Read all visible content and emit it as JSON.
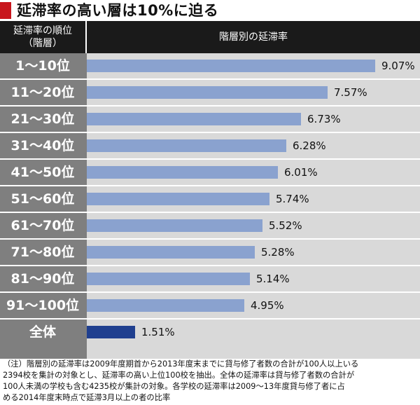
{
  "title": "延滞率の高い層は10%に迫る",
  "header": {
    "left_label_line1": "延滞率の順位",
    "left_label_line2": "（階層）",
    "right_label": "階層別の延滞率"
  },
  "chart_data": {
    "type": "bar",
    "orientation": "horizontal",
    "categories": [
      "1～10位",
      "11～20位",
      "21～30位",
      "31～40位",
      "41～50位",
      "51～60位",
      "61～70位",
      "71～80位",
      "81～90位",
      "91～100位",
      "全体"
    ],
    "values": [
      9.07,
      7.57,
      6.73,
      6.28,
      6.01,
      5.74,
      5.52,
      5.28,
      5.14,
      4.95,
      1.51
    ],
    "value_labels": [
      "9.07%",
      "7.57%",
      "6.73%",
      "6.28%",
      "6.01%",
      "5.74%",
      "5.52%",
      "5.28%",
      "5.14%",
      "4.95%",
      "1.51%"
    ],
    "unit": "%",
    "xlim": [
      0,
      10
    ],
    "grid": false,
    "colors": {
      "bar": "#8aa2cf",
      "total_bar": "#1f3f8f",
      "label_column": "#7f7f7f",
      "plot_background": "#d9d9d9",
      "header": "#1a1a1a",
      "title_mark": "#c8161d"
    }
  },
  "notes": [
    "（注）階層別の延滞率は2009年度期首から2013年度末までに貸与修了者数の合計が100人以上いる",
    "2394校を集計の対象とし、延滞率の高い上位100校を抽出。全体の延滞率は貸与修了者数の合計が",
    "100人未満の学校も含む4235校が集計の対象。各学校の延滞率は2009～13年度貸与修了者に占",
    "める2014年度末時点で延滞3月以上の者の比率"
  ]
}
